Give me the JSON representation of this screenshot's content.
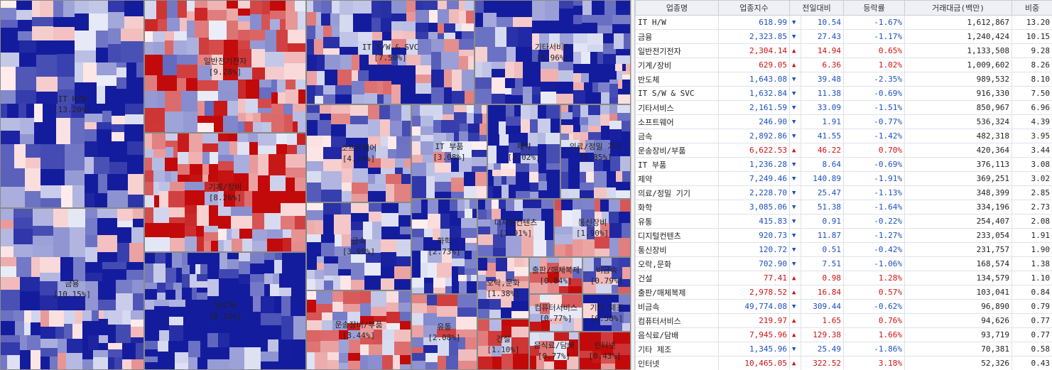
{
  "table": {
    "headers": [
      "업종명",
      "업종지수",
      "전일대비",
      "등락률",
      "거래대금(백만)",
      "비중"
    ],
    "rows": [
      {
        "name": "IT H/W",
        "index": "618.99",
        "dir": "down",
        "change": "10.54",
        "rate": "-1.67%",
        "volume": "1,612,867",
        "weight": "13.20"
      },
      {
        "name": "금융",
        "index": "2,323.85",
        "dir": "down",
        "change": "27.43",
        "rate": "-1.17%",
        "volume": "1,240,424",
        "weight": "10.15"
      },
      {
        "name": "일반전기전자",
        "index": "2,304.14",
        "dir": "up",
        "change": "14.94",
        "rate": "0.65%",
        "volume": "1,133,508",
        "weight": "9.28"
      },
      {
        "name": "기계/장비",
        "index": "629.05",
        "dir": "up",
        "change": "6.36",
        "rate": "1.02%",
        "volume": "1,009,602",
        "weight": "8.26"
      },
      {
        "name": "반도체",
        "index": "1,643.08",
        "dir": "down",
        "change": "39.48",
        "rate": "-2.35%",
        "volume": "989,532",
        "weight": "8.10"
      },
      {
        "name": "IT S/W & SVC",
        "index": "1,632.84",
        "dir": "down",
        "change": "11.38",
        "rate": "-0.69%",
        "volume": "916,330",
        "weight": "7.50"
      },
      {
        "name": "기타서비스",
        "index": "2,161.59",
        "dir": "down",
        "change": "33.09",
        "rate": "-1.51%",
        "volume": "850,967",
        "weight": "6.96"
      },
      {
        "name": "소프트웨어",
        "index": "246.90",
        "dir": "down",
        "change": "1.91",
        "rate": "-0.77%",
        "volume": "536,324",
        "weight": "4.39"
      },
      {
        "name": "금속",
        "index": "2,892.86",
        "dir": "down",
        "change": "41.55",
        "rate": "-1.42%",
        "volume": "482,318",
        "weight": "3.95"
      },
      {
        "name": "운송장비/부품",
        "index": "6,622.53",
        "dir": "up",
        "change": "46.22",
        "rate": "0.70%",
        "volume": "420,364",
        "weight": "3.44"
      },
      {
        "name": "IT 부품",
        "index": "1,236.28",
        "dir": "down",
        "change": "8.64",
        "rate": "-0.69%",
        "volume": "376,113",
        "weight": "3.08"
      },
      {
        "name": "제약",
        "index": "7,249.46",
        "dir": "down",
        "change": "140.89",
        "rate": "-1.91%",
        "volume": "369,251",
        "weight": "3.02"
      },
      {
        "name": "의료/정밀 기기",
        "index": "2,228.70",
        "dir": "down",
        "change": "25.47",
        "rate": "-1.13%",
        "volume": "348,399",
        "weight": "2.85"
      },
      {
        "name": "화학",
        "index": "3,085.06",
        "dir": "down",
        "change": "51.38",
        "rate": "-1.64%",
        "volume": "334,196",
        "weight": "2.73"
      },
      {
        "name": "유통",
        "index": "415.83",
        "dir": "down",
        "change": "0.91",
        "rate": "-0.22%",
        "volume": "254,407",
        "weight": "2.08"
      },
      {
        "name": "디지털컨텐츠",
        "index": "920.73",
        "dir": "down",
        "change": "11.87",
        "rate": "-1.27%",
        "volume": "233,054",
        "weight": "1.91"
      },
      {
        "name": "통신장비",
        "index": "120.72",
        "dir": "down",
        "change": "0.51",
        "rate": "-0.42%",
        "volume": "231,757",
        "weight": "1.90"
      },
      {
        "name": "오락,문화",
        "index": "702.90",
        "dir": "down",
        "change": "7.51",
        "rate": "-1.06%",
        "volume": "168,574",
        "weight": "1.38"
      },
      {
        "name": "건설",
        "index": "77.41",
        "dir": "up",
        "change": "0.98",
        "rate": "1.28%",
        "volume": "134,579",
        "weight": "1.10"
      },
      {
        "name": "출판/매체복제",
        "index": "2,978.52",
        "dir": "up",
        "change": "16.84",
        "rate": "0.57%",
        "volume": "103,041",
        "weight": "0.84"
      },
      {
        "name": "비금속",
        "index": "49,774.08",
        "dir": "down",
        "change": "309.44",
        "rate": "-0.62%",
        "volume": "96,890",
        "weight": "0.79"
      },
      {
        "name": "컴퓨터서비스",
        "index": "219.97",
        "dir": "up",
        "change": "1.65",
        "rate": "0.76%",
        "volume": "94,626",
        "weight": "0.77"
      },
      {
        "name": "음식료/담배",
        "index": "7,945.96",
        "dir": "up",
        "change": "129.38",
        "rate": "1.66%",
        "volume": "93,719",
        "weight": "0.77"
      },
      {
        "name": "기타 제조",
        "index": "1,345.96",
        "dir": "down",
        "change": "25.49",
        "rate": "-1.86%",
        "volume": "70,381",
        "weight": "0.58"
      },
      {
        "name": "인터넷",
        "index": "10,465.05",
        "dir": "up",
        "change": "322.52",
        "rate": "3.18%",
        "volume": "52,326",
        "weight": "0.43"
      }
    ]
  },
  "treemap": {
    "sectors": [
      {
        "id": "it-hw",
        "line1": "IT H/W",
        "line2": "[13.20%]"
      },
      {
        "id": "finance",
        "line1": "금융",
        "line2": "[10.15%]"
      },
      {
        "id": "elec",
        "line1": "일반전기전자",
        "line2": "[9.28%]"
      },
      {
        "id": "machine",
        "line1": "기계/장비",
        "line2": "[8.26%]"
      },
      {
        "id": "semi",
        "line1": "반도체",
        "line2": "[8.10%]"
      },
      {
        "id": "itsw",
        "line1": "IT S/W & SVC",
        "line2": "[7.50%]"
      },
      {
        "id": "etcsvc",
        "line1": "기타서비스",
        "line2": "[6.96%]"
      },
      {
        "id": "software",
        "line1": "소프트웨어",
        "line2": "[4.39%]"
      },
      {
        "id": "metal",
        "line1": "금속",
        "line2": "[3.95%]"
      },
      {
        "id": "transport",
        "line1": "운송장비/부품",
        "line2": "[3.44%]"
      },
      {
        "id": "itparts",
        "line1": "IT 부품",
        "line2": "[3.08%]"
      },
      {
        "id": "pharma",
        "line1": "제약",
        "line2": "[3.02%]"
      },
      {
        "id": "medical",
        "line1": "의료/정밀 기기",
        "line2": "[2.85%]"
      },
      {
        "id": "chem",
        "line1": "화학",
        "line2": "[2.73%]"
      },
      {
        "id": "retail",
        "line1": "유통",
        "line2": "[2.08%]"
      },
      {
        "id": "digital",
        "line1": "디지털컨텐츠",
        "line2": "[1.91%]"
      },
      {
        "id": "telecom",
        "line1": "통신장비",
        "line2": "[1.90%]"
      },
      {
        "id": "ent",
        "line1": "오락,문화",
        "line2": "[1.38%]"
      },
      {
        "id": "construction",
        "line1": "건설",
        "line2": "[1.10%]"
      },
      {
        "id": "publish",
        "line1": "출판/매체복제",
        "line2": "[0.84%]"
      },
      {
        "id": "nonmetal",
        "line1": "비금속",
        "line2": "[0.79%]"
      },
      {
        "id": "compsvc",
        "line1": "컴퓨터서비스",
        "line2": "[0.77%]"
      },
      {
        "id": "food",
        "line1": "음식료/담배",
        "line2": "[0.77%]"
      },
      {
        "id": "etcmfg",
        "line1": "기타 제조",
        "line2": "[0.58%]"
      },
      {
        "id": "internet",
        "line1": "인터넷",
        "line2": "[0.43%]"
      }
    ]
  },
  "colors": {
    "up": "#d01010",
    "down": "#1a4fc0",
    "header_bg": "#eef0f6"
  }
}
